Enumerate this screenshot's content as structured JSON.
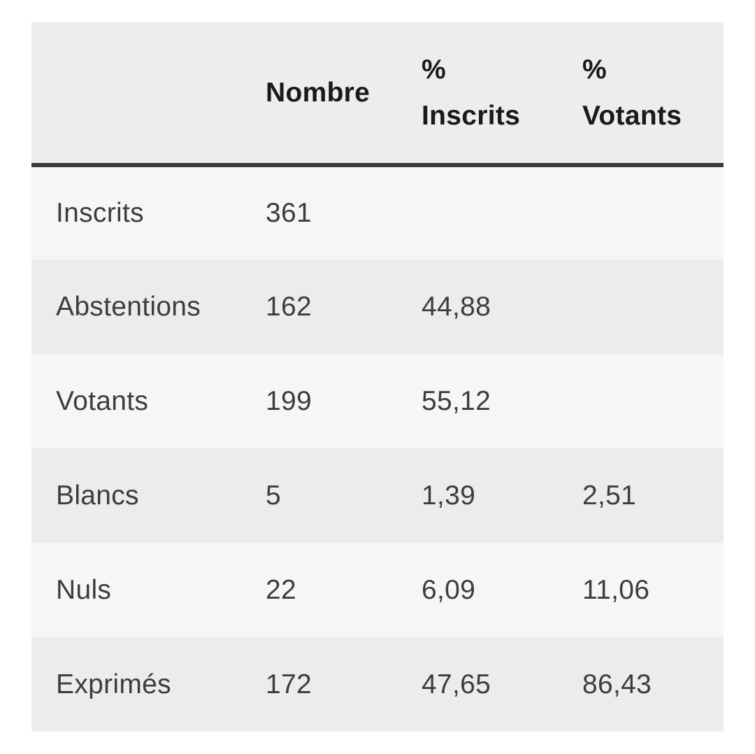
{
  "colors": {
    "header_bg": "#ededed",
    "row_light": "#f6f6f6",
    "row_dark": "#ececec",
    "border": "#3a3a3a",
    "header_text": "#1a1a1a",
    "body_text": "#3d3d3d"
  },
  "table": {
    "columns": [
      "",
      "Nombre",
      "%\nInscrits",
      "%\nVotants"
    ],
    "rows": [
      {
        "label": "Inscrits",
        "nombre": "361",
        "pct_inscrits": "",
        "pct_votants": ""
      },
      {
        "label": "Abstentions",
        "nombre": "162",
        "pct_inscrits": "44,88",
        "pct_votants": ""
      },
      {
        "label": "Votants",
        "nombre": "199",
        "pct_inscrits": "55,12",
        "pct_votants": ""
      },
      {
        "label": "Blancs",
        "nombre": "5",
        "pct_inscrits": "1,39",
        "pct_votants": "2,51"
      },
      {
        "label": "Nuls",
        "nombre": "22",
        "pct_inscrits": "6,09",
        "pct_votants": "11,06"
      },
      {
        "label": "Exprimés",
        "nombre": "172",
        "pct_inscrits": "47,65",
        "pct_votants": "86,43"
      }
    ]
  }
}
